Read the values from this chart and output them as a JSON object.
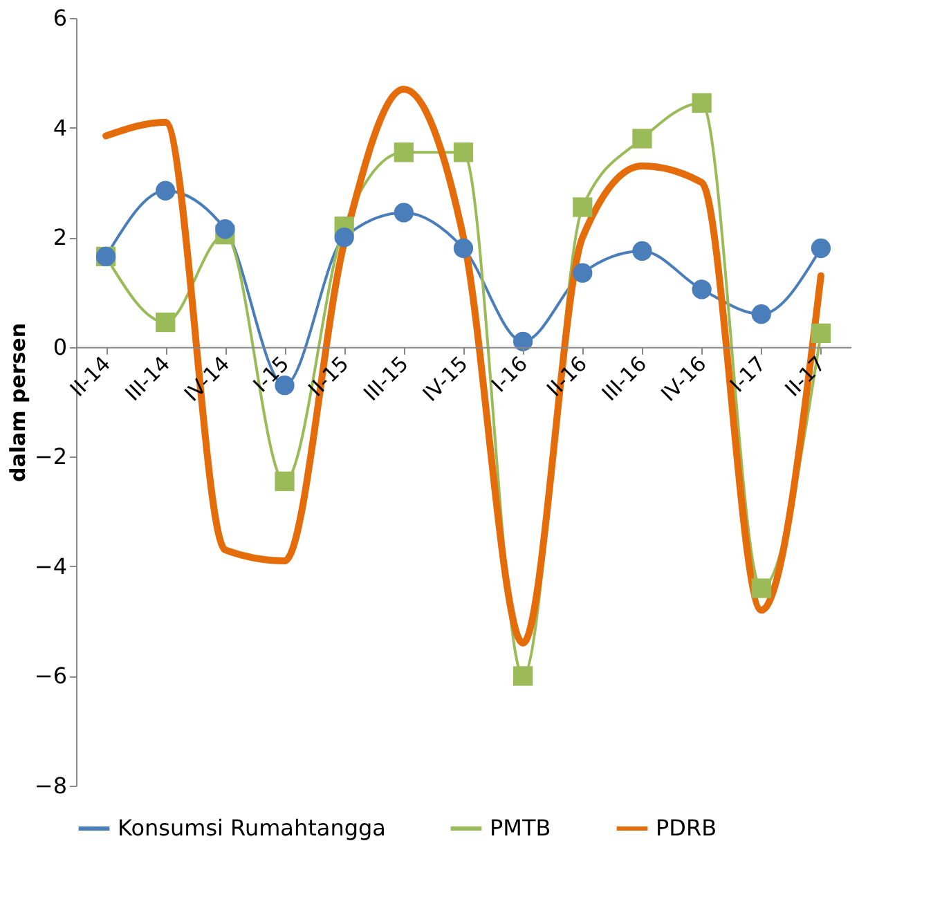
{
  "chart_data": {
    "type": "line",
    "ylabel": "dalam persen",
    "categories": [
      "II-14",
      "III-14",
      "IV-14",
      "I-15",
      "II-15",
      "III-15",
      "IV-15",
      "I-16",
      "II-16",
      "III-16",
      "IV-16",
      "I-17",
      "II-17"
    ],
    "series": [
      {
        "name": "Konsumsi Rumahtangga",
        "color": "#4a7ebb",
        "marker": "circle",
        "values": [
          1.65,
          2.85,
          2.15,
          -0.7,
          2.0,
          2.45,
          1.8,
          0.1,
          1.35,
          1.75,
          1.05,
          0.6,
          1.8
        ]
      },
      {
        "name": "PMTB",
        "color": "#9bbb59",
        "marker": "square",
        "values": [
          1.65,
          0.45,
          2.05,
          -2.45,
          2.2,
          3.55,
          3.55,
          -6.0,
          2.55,
          3.8,
          4.45,
          -4.4,
          0.25
        ]
      },
      {
        "name": "PDRB",
        "color": "#e46c0a",
        "marker": "none",
        "values": [
          3.85,
          4.1,
          -3.7,
          -3.9,
          1.9,
          4.7,
          2.0,
          -5.4,
          2.0,
          3.3,
          3.0,
          -4.8,
          1.3
        ]
      }
    ],
    "ylim": [
      -8,
      6
    ],
    "yticks": [
      -8,
      -6,
      -4,
      -2,
      0,
      2,
      4,
      6
    ],
    "grid": false,
    "legend": "bottom",
    "line_style": "solid"
  }
}
